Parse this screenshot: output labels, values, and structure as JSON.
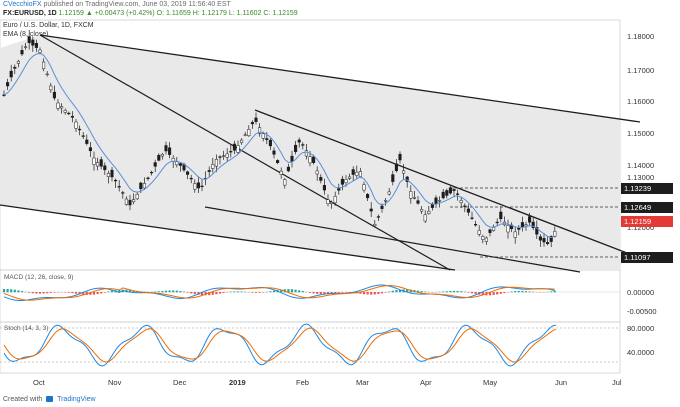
{
  "header": {
    "author": "CVecchioFX",
    "published": "published on TradingView.com, June 03, 2019 11:56:40 EST",
    "symbol": "FX:EURUSD, 1D",
    "ohlc": "1.12159 ▲ +0.00473 (+0.42%) O: 1.11659 H: 1.12179 L: 1.11602 C: 1.12159",
    "title": "Euro / U.S. Dollar, 1D, FXCM",
    "ema_label": "EMA (8, close)"
  },
  "price_axis": {
    "ticks": [
      "1.18000",
      "1.17000",
      "1.16000",
      "1.15000",
      "1.14000",
      "1.13000",
      "1.12000"
    ],
    "levels": [
      {
        "label": "1.13239",
        "bg": "#1d1d1d",
        "fg": "#ffffff"
      },
      {
        "label": "1.12649",
        "bg": "#1d1d1d",
        "fg": "#ffffff"
      },
      {
        "label": "1.12159",
        "bg": "#e53935",
        "fg": "#ffffff"
      },
      {
        "label": "1.11097",
        "bg": "#1d1d1d",
        "fg": "#ffffff"
      }
    ]
  },
  "macd": {
    "label": "MACD (12, 26, close, 9)",
    "ticks": [
      "0.00000",
      "-0.00500"
    ]
  },
  "stoch": {
    "label": "Stoch (14, 3, 3)",
    "ticks": [
      "80.0000",
      "40.0000"
    ]
  },
  "time_axis": [
    "Oct",
    "Nov",
    "Dec",
    "2019",
    "Feb",
    "Mar",
    "Apr",
    "May",
    "Jun",
    "Jul"
  ],
  "footer": {
    "created": "Created with",
    "brand": "TradingView"
  },
  "colors": {
    "candle_up": "#ffffff",
    "candle_down": "#1d1d1d",
    "ema": "#5b8fd6",
    "channel_fill": "#e8e8e8",
    "macd_line": "#1e88e5",
    "signal_line": "#ef6c00",
    "hist_pos": "#26a69a",
    "hist_neg": "#ef5350",
    "stoch_k": "#1e88e5",
    "stoch_d": "#ef6c00"
  }
}
